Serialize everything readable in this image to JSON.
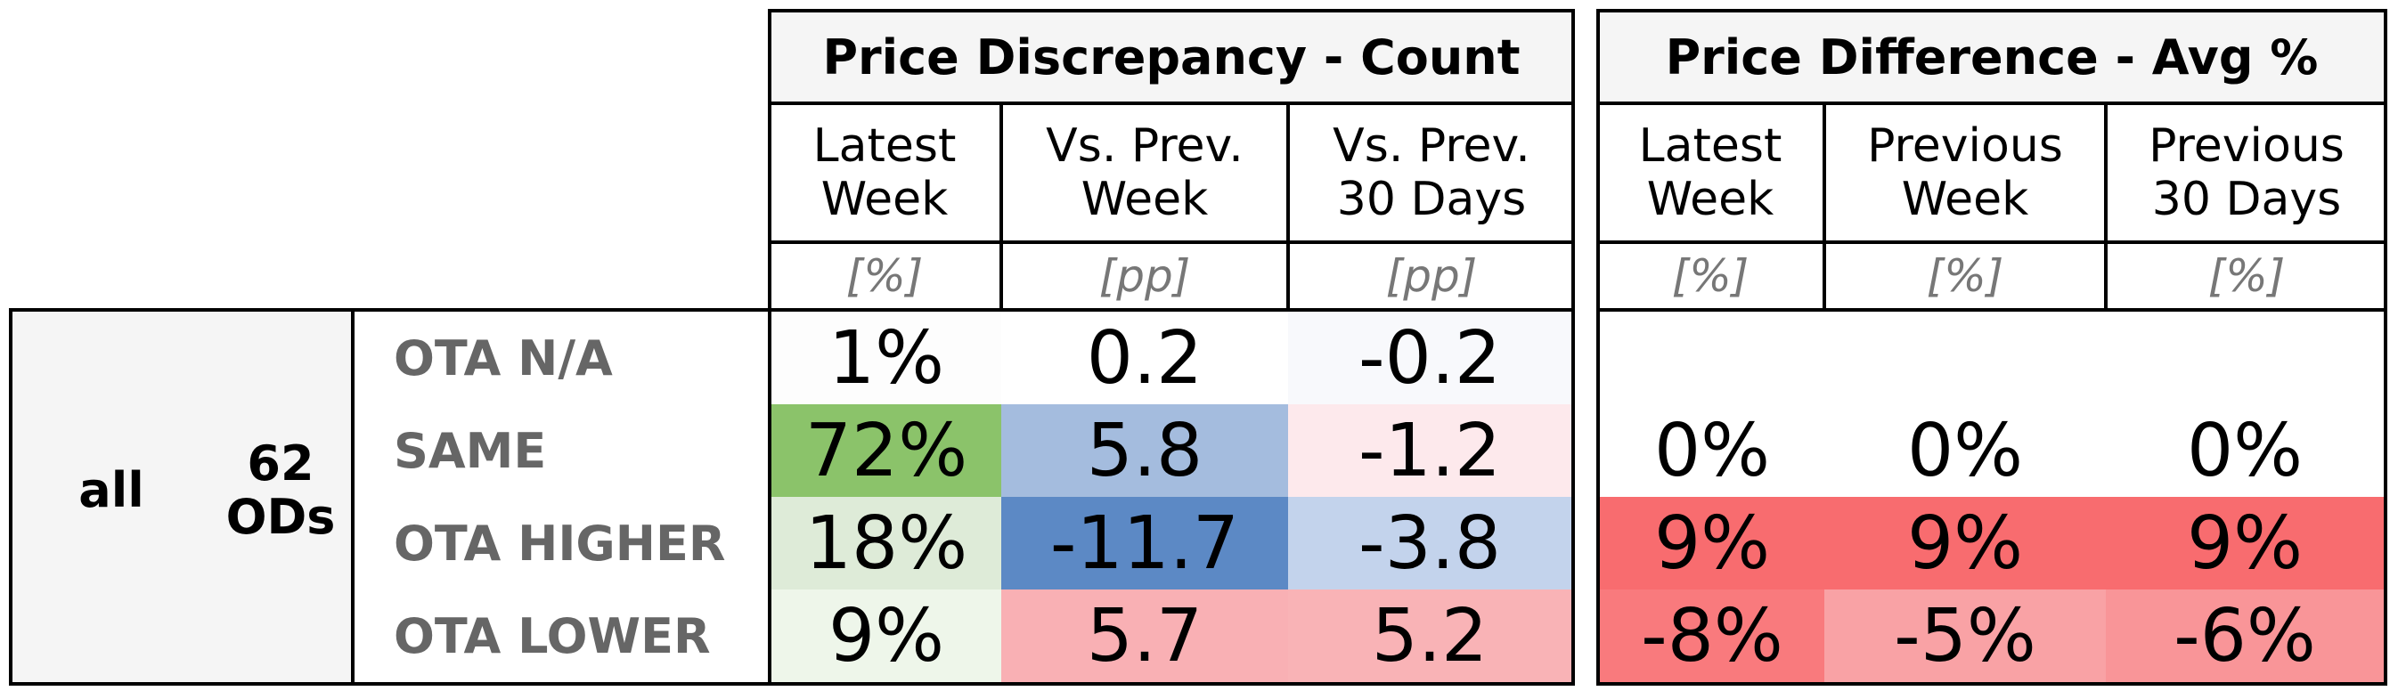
{
  "chart_data": {
    "type": "table",
    "group": {
      "label": "all",
      "count_label": "62\nODs"
    },
    "rows": [
      "OTA N/A",
      "SAME",
      "OTA HIGHER",
      "OTA LOWER"
    ],
    "sections": [
      {
        "title": "Price Discrepancy - Count",
        "columns": [
          {
            "label": "Latest\nWeek",
            "unit": "[%]"
          },
          {
            "label": "Vs. Prev.\nWeek",
            "unit": "[pp]"
          },
          {
            "label": "Vs. Prev.\n30 Days",
            "unit": "[pp]"
          }
        ],
        "cells": [
          [
            {
              "text": "1%",
              "bg": "#fdfdfd"
            },
            {
              "text": "0.2",
              "bg": "#ffffff"
            },
            {
              "text": "-0.2",
              "bg": "#f8f9fc"
            }
          ],
          [
            {
              "text": "72%",
              "bg": "#8bc36a"
            },
            {
              "text": "5.8",
              "bg": "#a4bcde"
            },
            {
              "text": "-1.2",
              "bg": "#fde9ec"
            }
          ],
          [
            {
              "text": "18%",
              "bg": "#deebd8"
            },
            {
              "text": "-11.7",
              "bg": "#5c89c5"
            },
            {
              "text": "-3.8",
              "bg": "#c3d3ec"
            }
          ],
          [
            {
              "text": "9%",
              "bg": "#eef6ea"
            },
            {
              "text": "5.7",
              "bg": "#f9b0b4"
            },
            {
              "text": "5.2",
              "bg": "#f9b3b6"
            }
          ]
        ]
      },
      {
        "title": "Price Difference - Avg %",
        "columns": [
          {
            "label": "Latest\nWeek",
            "unit": "[%]"
          },
          {
            "label": "Previous\nWeek",
            "unit": "[%]"
          },
          {
            "label": "Previous\n30 Days",
            "unit": "[%]"
          }
        ],
        "cells": [
          [
            {
              "text": "",
              "bg": "#ffffff"
            },
            {
              "text": "",
              "bg": "#ffffff"
            },
            {
              "text": "",
              "bg": "#ffffff"
            }
          ],
          [
            {
              "text": "0%",
              "bg": "#ffffff"
            },
            {
              "text": "0%",
              "bg": "#ffffff"
            },
            {
              "text": "0%",
              "bg": "#ffffff"
            }
          ],
          [
            {
              "text": "9%",
              "bg": "#f86c6f"
            },
            {
              "text": "9%",
              "bg": "#f86c6f"
            },
            {
              "text": "9%",
              "bg": "#f86c6f"
            }
          ],
          [
            {
              "text": "-8%",
              "bg": "#f97a7d"
            },
            {
              "text": "-5%",
              "bg": "#f9a2a5"
            },
            {
              "text": "-6%",
              "bg": "#f99598"
            }
          ]
        ]
      }
    ]
  }
}
